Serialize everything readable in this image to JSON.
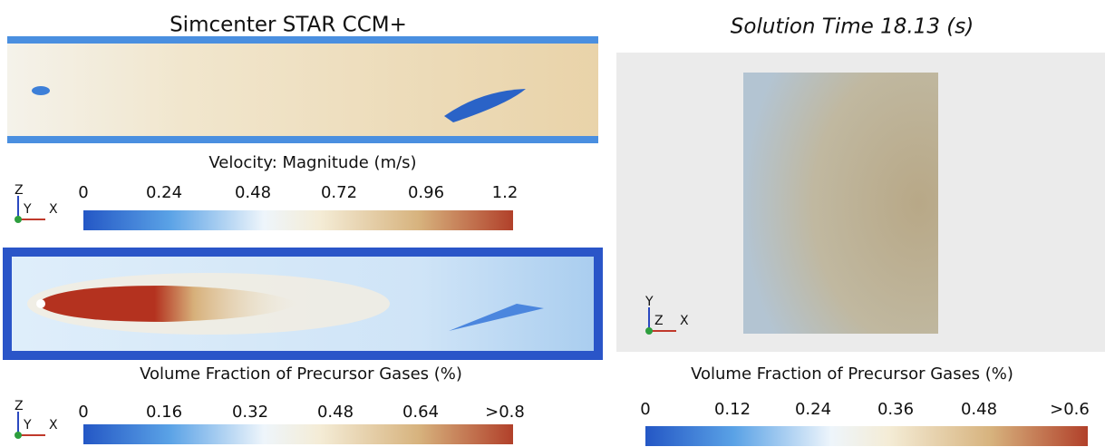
{
  "left": {
    "title": "Simcenter STAR CCM+",
    "velocity": {
      "title": "Velocity: Magnitude (m/s)",
      "ticks": [
        "0",
        "0.24",
        "0.48",
        "0.72",
        "0.96",
        "1.2"
      ],
      "axes": [
        "Z",
        "Y",
        "X"
      ]
    },
    "fraction": {
      "title": "Volume Fraction of Precursor Gases (%)",
      "ticks": [
        "0",
        "0.16",
        "0.32",
        "0.48",
        "0.64",
        ">0.8"
      ],
      "axes": [
        "Z",
        "Y",
        "X"
      ]
    }
  },
  "right": {
    "title": "Solution Time 18.13 (s)",
    "fraction": {
      "title": "Volume Fraction of Precursor Gases (%)",
      "ticks": [
        "0",
        "0.12",
        "0.24",
        "0.36",
        "0.48",
        ">0.6"
      ],
      "axes": [
        "Y",
        "Z",
        "X"
      ]
    }
  }
}
